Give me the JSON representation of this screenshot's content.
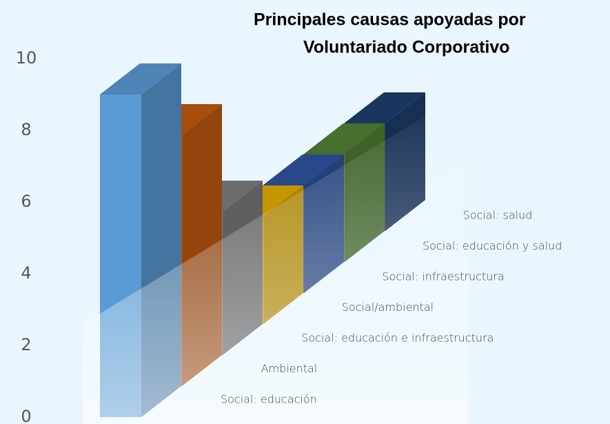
{
  "chart_data": {
    "type": "bar3d",
    "title": [
      "Principales causas apoyadas por",
      "Voluntariado Corporativo"
    ],
    "categories": [
      "Social: educación",
      "Ambiental",
      "Social: educación e infraestructura",
      "Social/ambiental",
      "Social: infraestructura",
      "Social: educación y salud",
      "Social: salud"
    ],
    "values": [
      9,
      7,
      4,
      3,
      3,
      3,
      3
    ],
    "colors": [
      "#5b9bd5",
      "#c55a11",
      "#7f7f7f",
      "#e8b000",
      "#2f55a4",
      "#548235",
      "#1f3f6e"
    ],
    "ylim": [
      0,
      10
    ],
    "yticks": [
      0,
      2,
      4,
      6,
      8,
      10
    ]
  }
}
